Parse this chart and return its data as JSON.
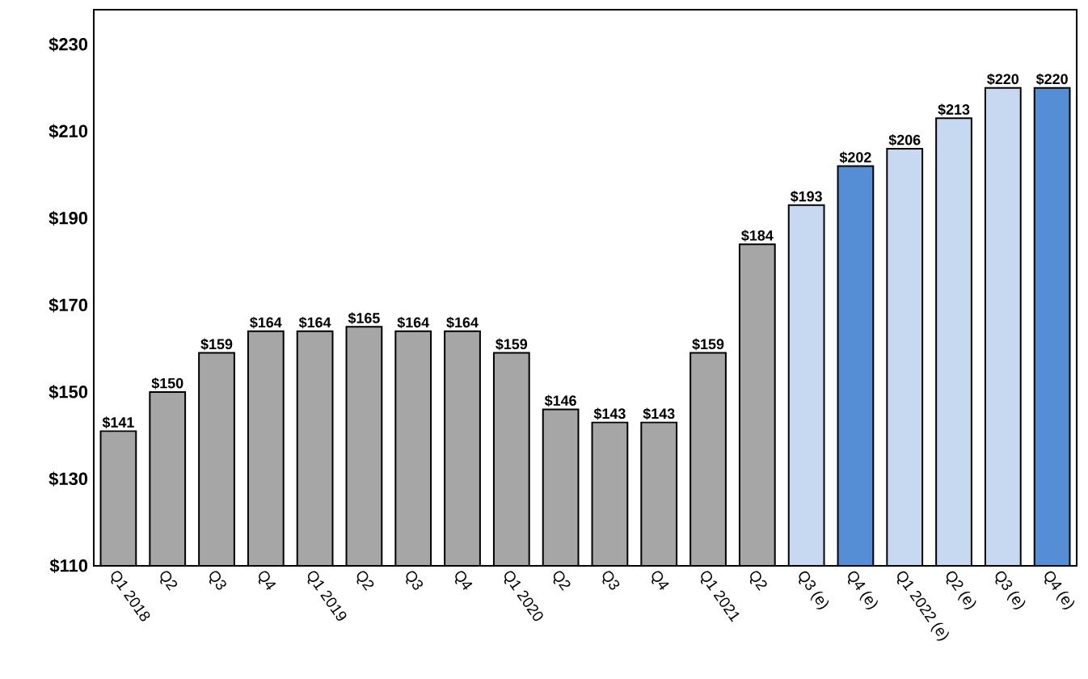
{
  "chart_data": {
    "type": "bar",
    "categories": [
      "Q1 2018",
      "Q2",
      "Q3",
      "Q4",
      "Q1 2019",
      "Q2",
      "Q3",
      "Q4",
      "Q1 2020",
      "Q2",
      "Q3",
      "Q4",
      "Q1 2021",
      "Q2",
      "Q3 (e)",
      "Q4 (e)",
      "Q1 2022 (e)",
      "Q2 (e)",
      "Q3 (e)",
      "Q4 (e)"
    ],
    "values": [
      141,
      150,
      159,
      164,
      164,
      165,
      164,
      164,
      159,
      146,
      143,
      143,
      159,
      184,
      193,
      202,
      206,
      213,
      220,
      220
    ],
    "colors": [
      "#a6a6a6",
      "#a6a6a6",
      "#a6a6a6",
      "#a6a6a6",
      "#a6a6a6",
      "#a6a6a6",
      "#a6a6a6",
      "#a6a6a6",
      "#a6a6a6",
      "#a6a6a6",
      "#a6a6a6",
      "#a6a6a6",
      "#a6a6a6",
      "#a6a6a6",
      "#c6d9f1",
      "#558ed5",
      "#c6d9f1",
      "#c6d9f1",
      "#c6d9f1",
      "#558ed5"
    ],
    "value_labels": [
      "$141",
      "$150",
      "$159",
      "$164",
      "$164",
      "$165",
      "$164",
      "$164",
      "$159",
      "$146",
      "$143",
      "$143",
      "$159",
      "$184",
      "$193",
      "$202",
      "$206",
      "$213",
      "$220",
      "$220"
    ],
    "ylim": [
      110,
      238
    ],
    "yticks": [
      {
        "value": 110,
        "label": "$110"
      },
      {
        "value": 130,
        "label": "$130"
      },
      {
        "value": 150,
        "label": "$150"
      },
      {
        "value": 170,
        "label": "$170"
      },
      {
        "value": 190,
        "label": "$190"
      },
      {
        "value": 210,
        "label": "$210"
      },
      {
        "value": 230,
        "label": "$230"
      }
    ],
    "grid": false
  }
}
